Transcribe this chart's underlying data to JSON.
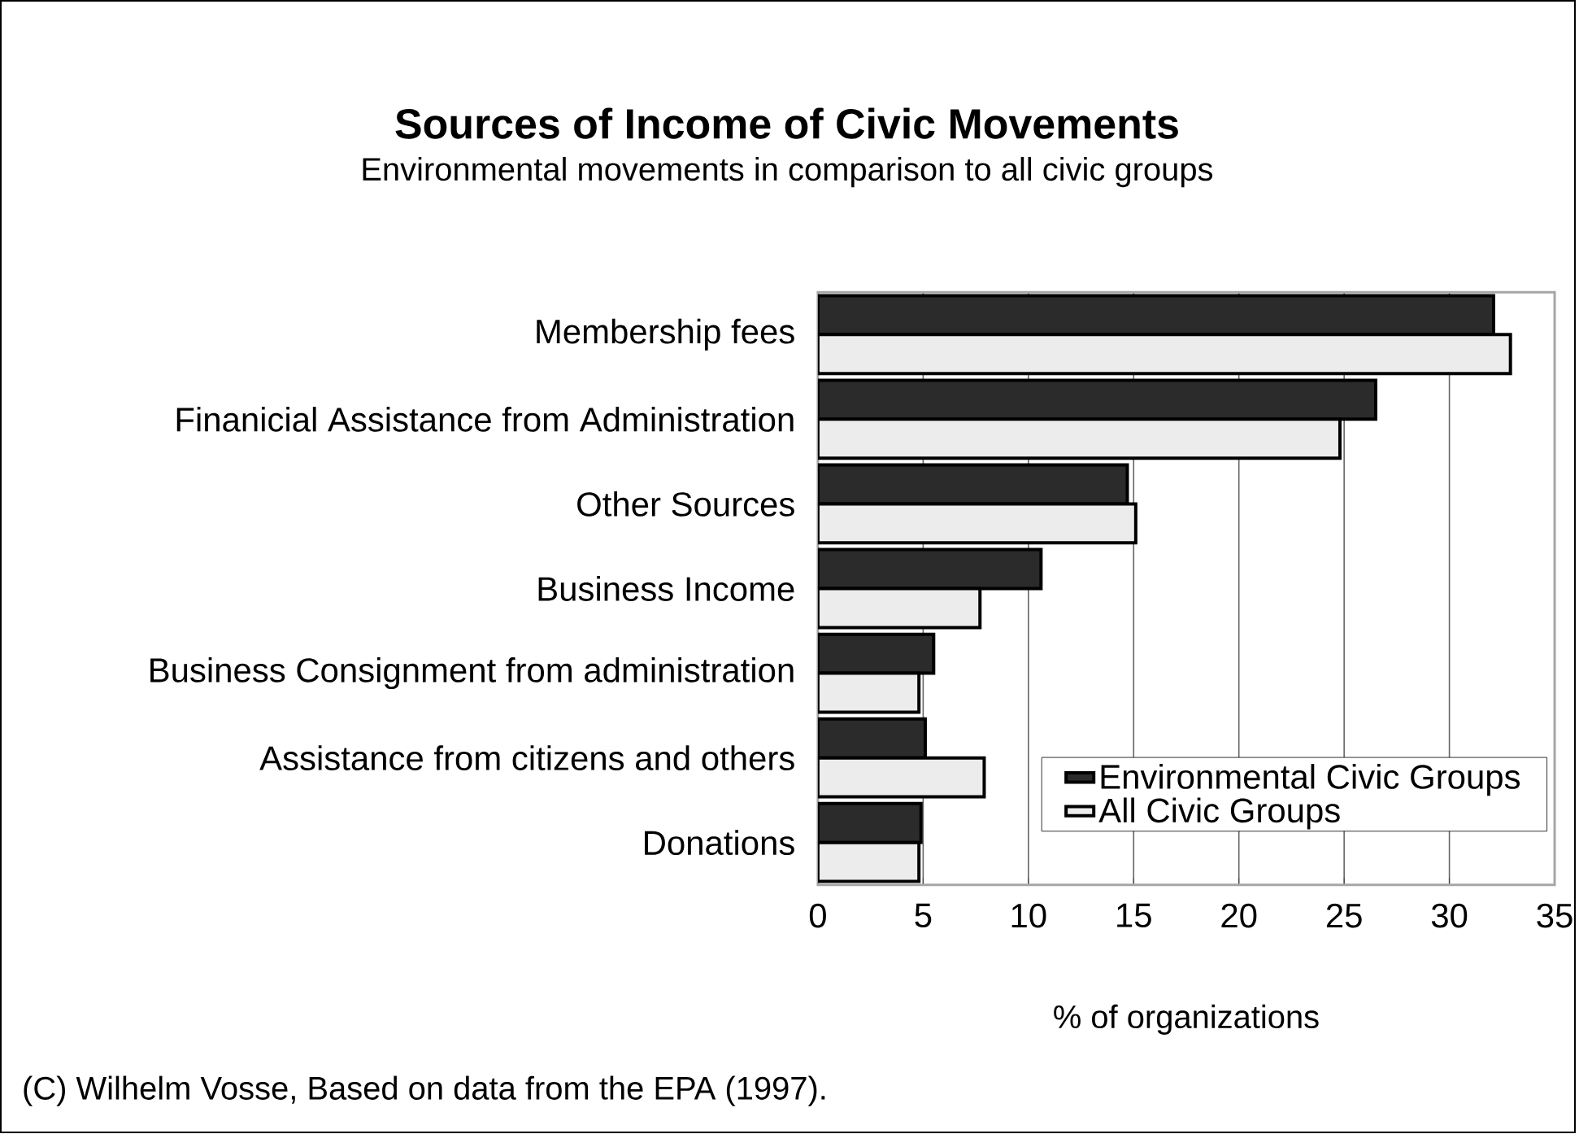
{
  "chart_data": {
    "type": "bar",
    "orientation": "horizontal",
    "title": "Sources of Income of Civic Movements",
    "subtitle": "Environmental movements in comparison to all civic groups",
    "xlabel": "% of organizations",
    "categories": [
      "Membership fees",
      "Finanicial Assistance from Administration",
      "Other Sources",
      "Business Income",
      "Business Consignment from administration",
      "Assistance from citizens and others",
      "Donations"
    ],
    "series": [
      {
        "name": "Environmental Civic Groups",
        "color": "#2b2b2b",
        "values": [
          32.1,
          26.5,
          14.7,
          10.6,
          5.5,
          5.1,
          4.9
        ]
      },
      {
        "name": "All Civic Groups",
        "color": "#ececec",
        "values": [
          32.9,
          24.8,
          15.1,
          7.7,
          4.8,
          7.9,
          4.8
        ]
      }
    ],
    "xlim": [
      0,
      35
    ],
    "xticks": [
      0,
      5,
      10,
      15,
      20,
      25,
      30,
      35
    ],
    "grid": "x",
    "legend": "bottom right",
    "annotations": [
      "(C) Wilhelm Vosse, Based on data from the EPA (1997)."
    ]
  }
}
